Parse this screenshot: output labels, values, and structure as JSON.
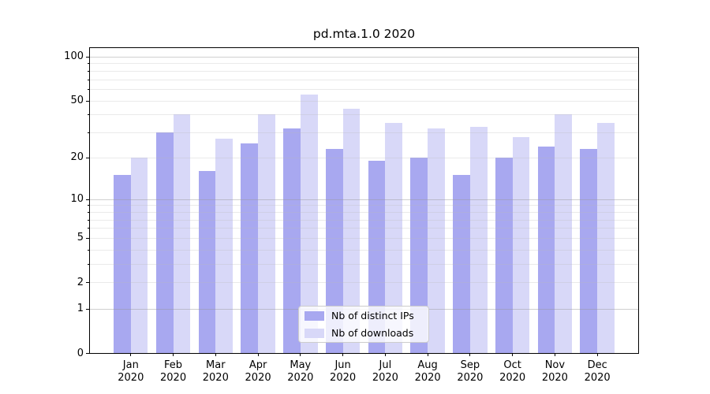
{
  "chart_data": {
    "type": "bar",
    "title": "pd.mta.1.0 2020",
    "categories": [
      "Jan",
      "Feb",
      "Mar",
      "Apr",
      "May",
      "Jun",
      "Jul",
      "Aug",
      "Sep",
      "Oct",
      "Nov",
      "Dec"
    ],
    "category_sublabel": "2020",
    "series": [
      {
        "name": "Nb of distinct IPs",
        "color": "#a8a8f0",
        "values": [
          15,
          30,
          16,
          25,
          32,
          23,
          19,
          20,
          15,
          20,
          24,
          23
        ]
      },
      {
        "name": "Nb of downloads",
        "color": "#d8d8f8",
        "values": [
          20,
          40,
          27,
          40,
          55,
          44,
          35,
          32,
          33,
          28,
          40,
          35
        ]
      }
    ],
    "xlabel": "",
    "ylabel": "",
    "yscale": "log1p",
    "yticks": [
      0,
      1,
      2,
      5,
      10,
      20,
      50,
      100
    ],
    "ytick_major": [
      0,
      1,
      10,
      100
    ],
    "ytick_minor_labeled": [
      2,
      5,
      20,
      50
    ],
    "ytick_minor_unlabeled": [
      3,
      4,
      6,
      7,
      8,
      9,
      30,
      40,
      60,
      70,
      80,
      90
    ],
    "ylim": [
      0,
      114
    ],
    "grid": "major+minor, drawn above bars",
    "legend_position": "lower center"
  }
}
